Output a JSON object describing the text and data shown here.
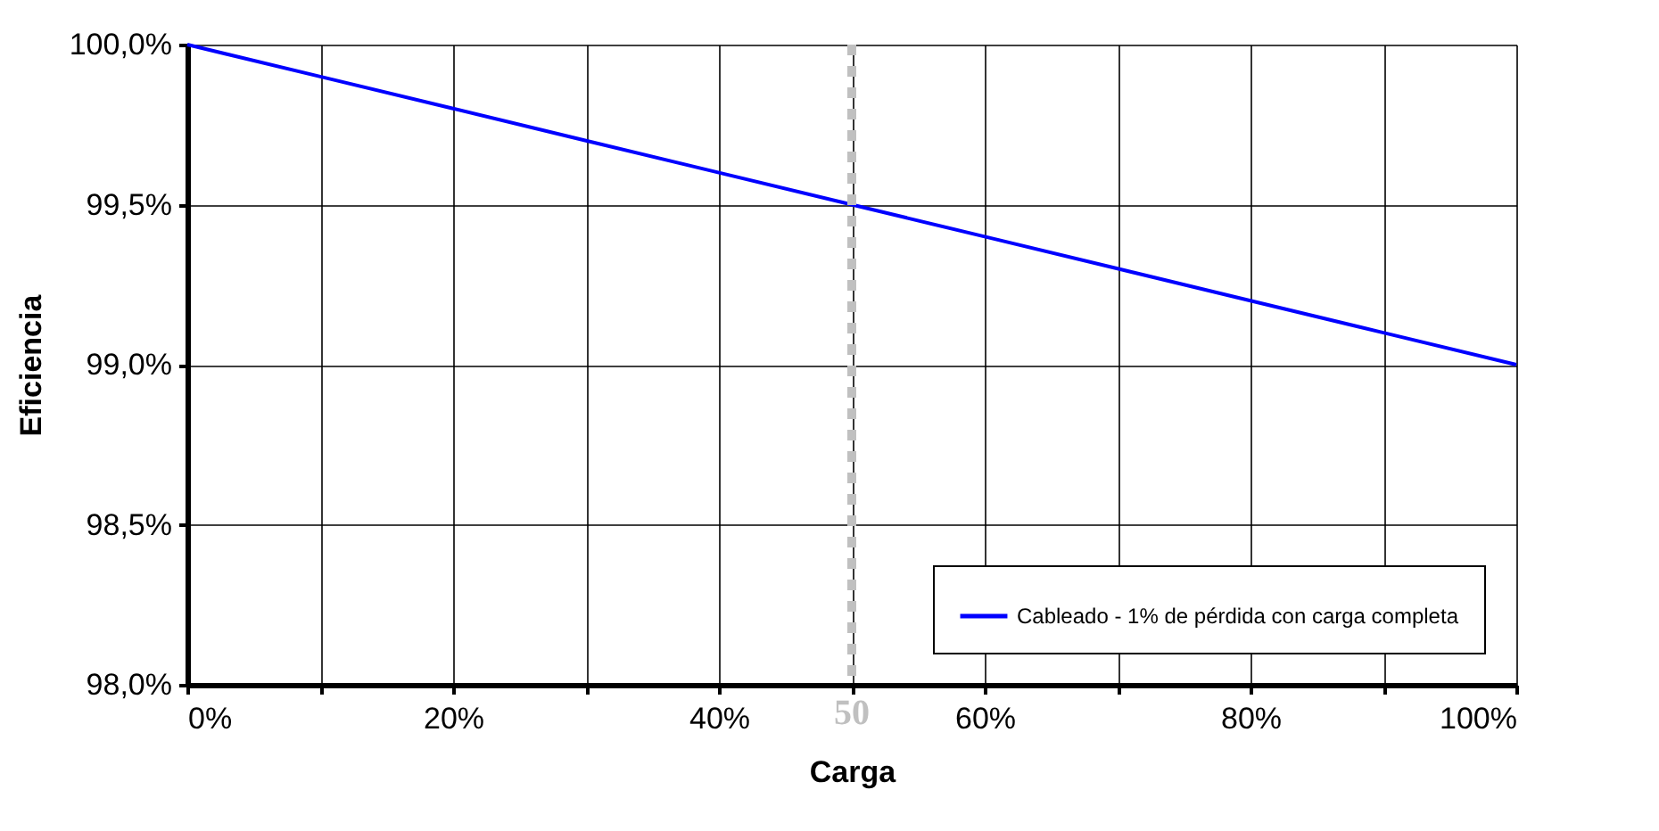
{
  "chart_data": {
    "type": "line",
    "xlabel": "Carga",
    "ylabel": "Eficiencia",
    "x": [
      0,
      10,
      20,
      30,
      40,
      50,
      60,
      70,
      80,
      90,
      100
    ],
    "series": [
      {
        "name": "Cableado - 1% de pérdida con carga completa",
        "color": "#0000ff",
        "values": [
          100.0,
          99.9,
          99.8,
          99.7,
          99.6,
          99.5,
          99.4,
          99.3,
          99.2,
          99.1,
          99.0
        ]
      }
    ],
    "xlim": [
      0,
      100
    ],
    "ylim": [
      98,
      100
    ],
    "xticks": [
      {
        "value": 0,
        "label": "0%"
      },
      {
        "value": 10,
        "label": null
      },
      {
        "value": 20,
        "label": "20%"
      },
      {
        "value": 30,
        "label": null
      },
      {
        "value": 40,
        "label": "40%"
      },
      {
        "value": 50,
        "label": null
      },
      {
        "value": 60,
        "label": "60%"
      },
      {
        "value": 70,
        "label": null
      },
      {
        "value": 80,
        "label": "80%"
      },
      {
        "value": 90,
        "label": null
      },
      {
        "value": 100,
        "label": "100%"
      }
    ],
    "yticks": [
      {
        "value": 98,
        "label": "98,0%"
      },
      {
        "value": 98.5,
        "label": "98,5%"
      },
      {
        "value": 99,
        "label": "99,0%"
      },
      {
        "value": 99.5,
        "label": "99,5%"
      },
      {
        "value": 100,
        "label": "100,0%"
      }
    ],
    "ref_lines": [
      {
        "axis": "x",
        "value": 50,
        "label": "50",
        "color": "#c0c0c0",
        "line_style": "dotted"
      }
    ],
    "grid": true,
    "legend": "bottom right",
    "marker": "none",
    "line_style": "solid"
  }
}
